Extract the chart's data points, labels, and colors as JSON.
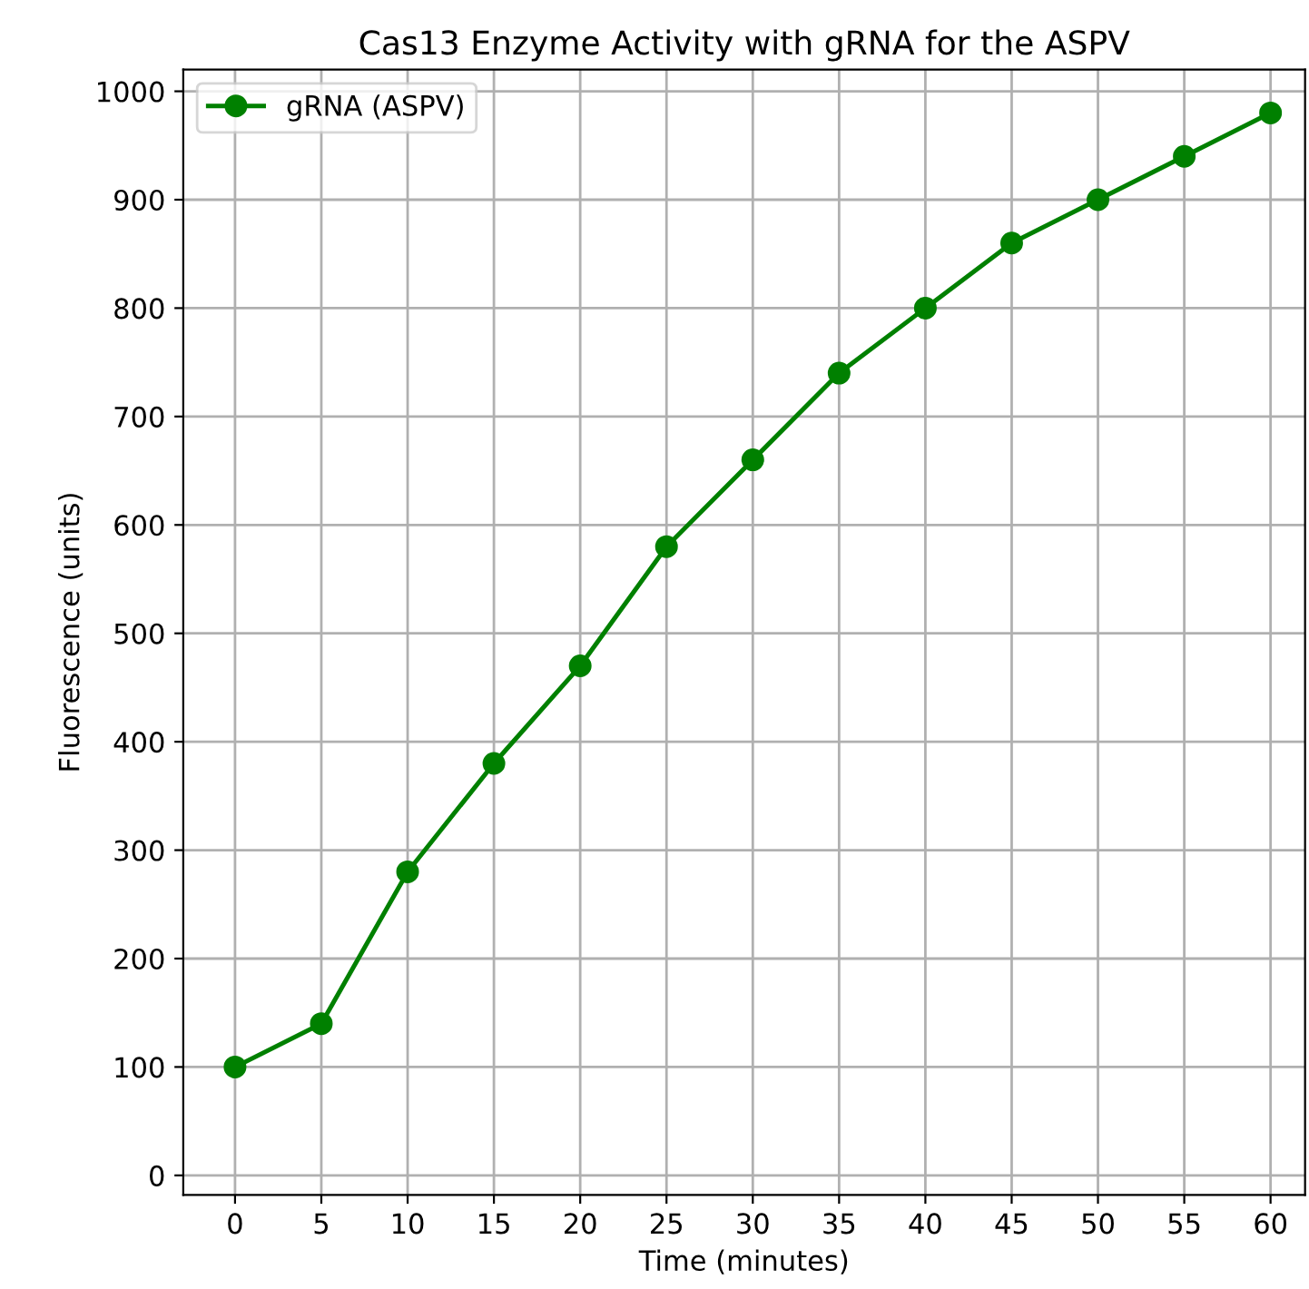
{
  "chart_data": {
    "type": "line",
    "title": "Cas13 Enzyme Activity with gRNA for the ASPV",
    "xlabel": "Time (minutes)",
    "ylabel": "Fluorescence (units)",
    "x": [
      0,
      5,
      10,
      15,
      20,
      25,
      30,
      35,
      40,
      45,
      50,
      55,
      60
    ],
    "series": [
      {
        "name": "gRNA (ASPV)",
        "color": "#008000",
        "values": [
          100,
          140,
          280,
          380,
          470,
          580,
          660,
          740,
          800,
          860,
          900,
          940,
          980
        ]
      }
    ],
    "xlim": [
      -3,
      62
    ],
    "xticks": [
      0,
      5,
      10,
      15,
      20,
      25,
      30,
      35,
      40,
      45,
      50,
      55,
      60
    ],
    "ylim": [
      -18,
      1020
    ],
    "yticks": [
      0,
      100,
      200,
      300,
      400,
      500,
      600,
      700,
      800,
      900,
      1000
    ],
    "grid": true,
    "legend": "top left",
    "marker": "circle",
    "line_style": "solid"
  }
}
